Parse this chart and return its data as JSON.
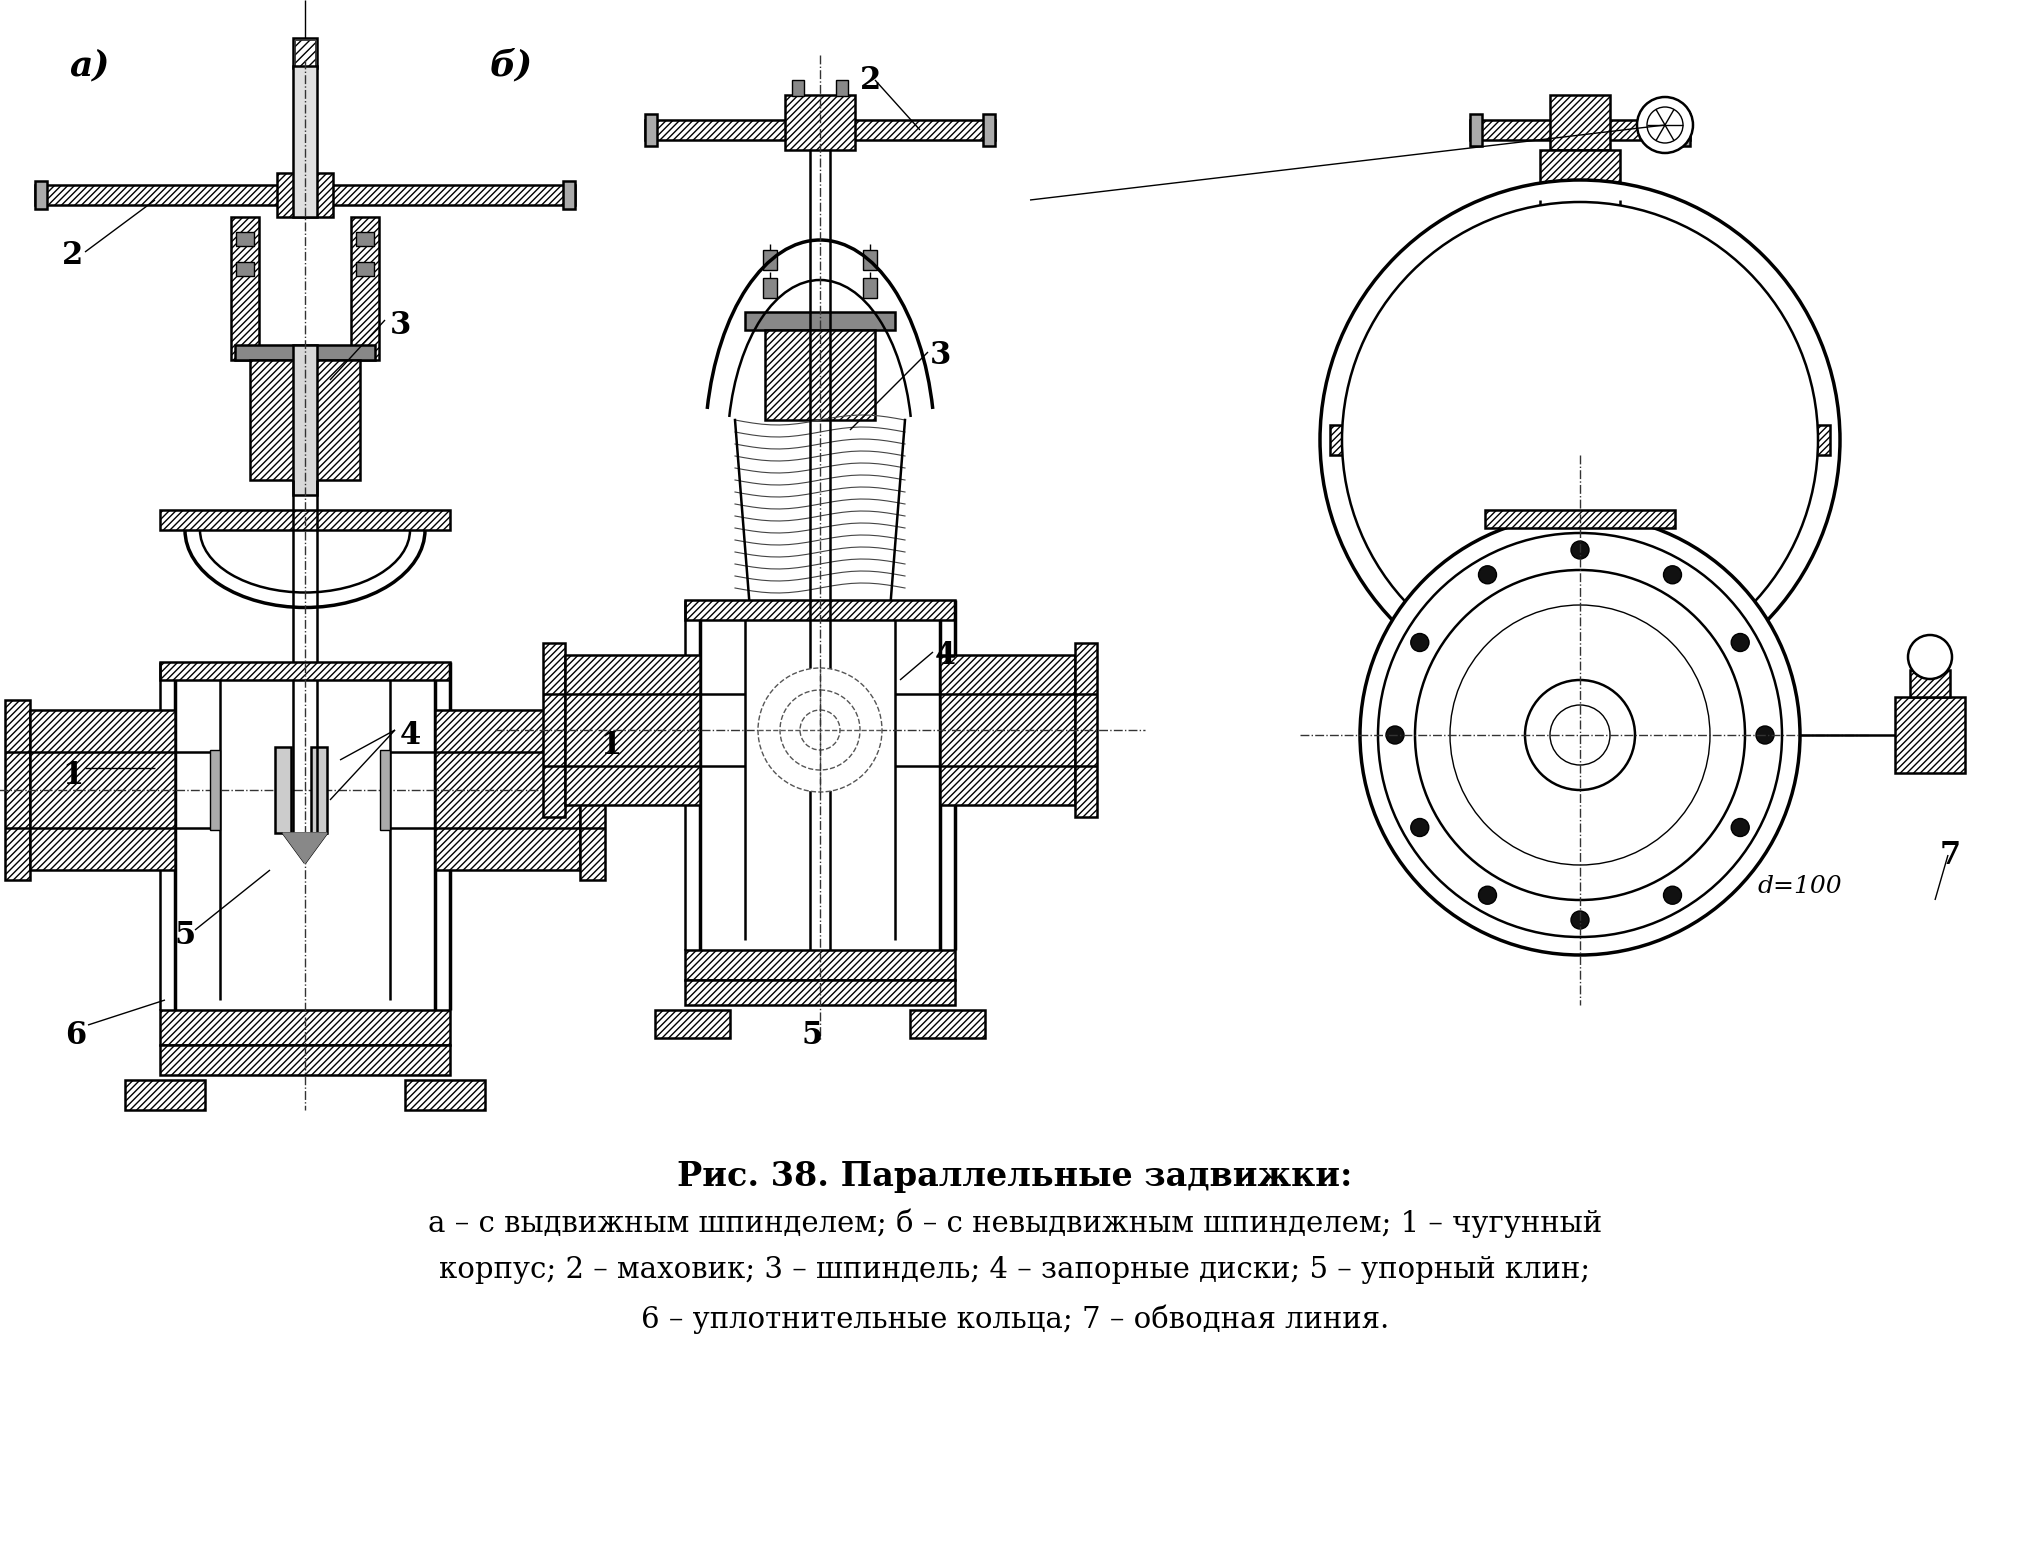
{
  "background_color": "#ffffff",
  "fig_width": 20.3,
  "fig_height": 15.57,
  "title_line1": "Рис. 38. Параллельные задвижки:",
  "title_line2": "а – с выдвижным шпинделем; б – с невыдвижным шпинделем; 1 – чугунный",
  "title_line3": "корпус; 2 – маховик; 3 – шпиндель; 4 – запорные диски; 5 – упорный клин;",
  "title_line4": "6 – уплотнительные кольца; 7 – обводная линия.",
  "label_a": "а)",
  "label_b": "б)",
  "line_color": "#000000",
  "text_color": "#000000",
  "title_fontsize": 24,
  "label_fontsize": 22,
  "caption_fontsize": 21
}
